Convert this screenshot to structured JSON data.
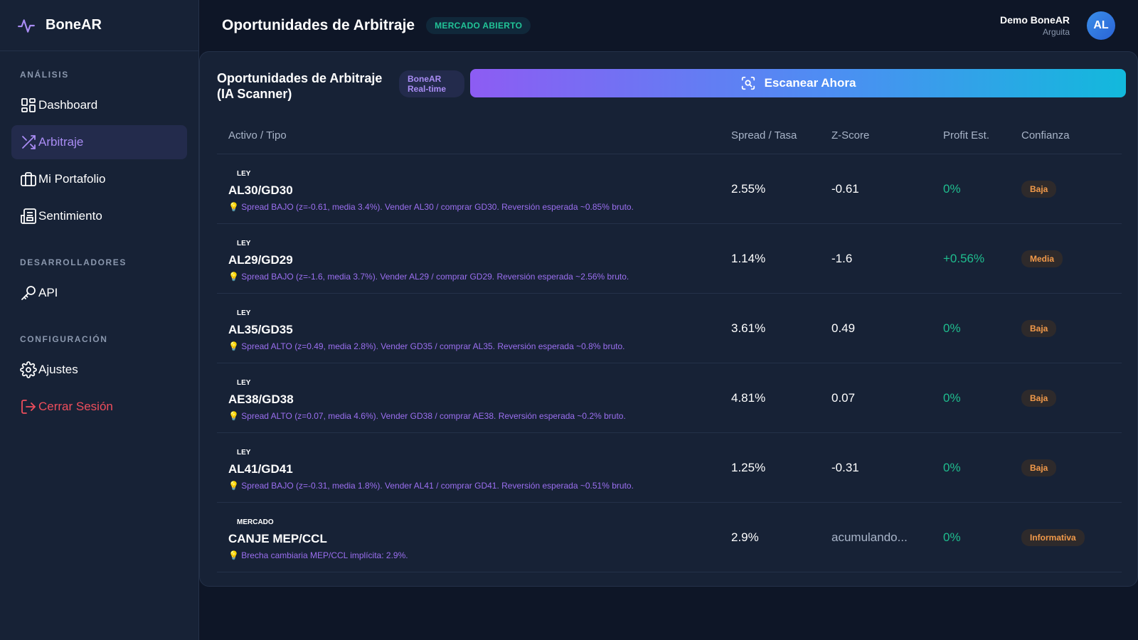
{
  "brand": {
    "name": "BoneAR"
  },
  "sidebar": {
    "sections": [
      {
        "title": "ANÁLISIS"
      },
      {
        "title": "DESARROLLADORES"
      },
      {
        "title": "CONFIGURACIÓN"
      }
    ],
    "items": [
      {
        "label": "Dashboard",
        "icon": "dashboard-icon"
      },
      {
        "label": "Arbitraje",
        "icon": "shuffle-icon",
        "active": true
      },
      {
        "label": "Mi Portafolio",
        "icon": "briefcase-icon"
      },
      {
        "label": "Sentimiento",
        "icon": "newspaper-icon"
      },
      {
        "label": "API",
        "icon": "key-icon"
      },
      {
        "label": "Ajustes",
        "icon": "gear-icon"
      },
      {
        "label": "Cerrar Sesión",
        "icon": "logout-icon"
      }
    ]
  },
  "header": {
    "title": "Oportunidades de Arbitraje",
    "market_status": "MERCADO ABIERTO",
    "user_name": "Demo BoneAR",
    "user_sub": "Arguita",
    "avatar_initials": "AL"
  },
  "card": {
    "title_line1": "Oportunidades de Arbitraje",
    "title_line2": "(IA Scanner)",
    "badge_line1": "BoneAR",
    "badge_line2": "Real-time",
    "scan_label": "Escanear Ahora"
  },
  "table": {
    "headers": {
      "asset": "Activo / Tipo",
      "spread": "Spread / Tasa",
      "z": "Z-Score",
      "profit": "Profit Est.",
      "confidence": "Confianza"
    },
    "rows": [
      {
        "tag": "LEY",
        "pair": "AL30/GD30",
        "hint": "💡 Spread BAJO (z=-0.61, media 3.4%). Vender AL30 / comprar GD30. Reversión esperada ~0.85% bruto.",
        "spread": "2.55%",
        "z": "-0.61",
        "profit": "0%",
        "confidence": "Baja"
      },
      {
        "tag": "LEY",
        "pair": "AL29/GD29",
        "hint": "💡 Spread BAJO (z=-1.6, media 3.7%). Vender AL29 / comprar GD29. Reversión esperada ~2.56% bruto.",
        "spread": "1.14%",
        "z": "-1.6",
        "profit": "+0.56%",
        "confidence": "Media"
      },
      {
        "tag": "LEY",
        "pair": "AL35/GD35",
        "hint": "💡 Spread ALTO (z=0.49, media 2.8%). Vender GD35 / comprar AL35. Reversión esperada ~0.8% bruto.",
        "spread": "3.61%",
        "z": "0.49",
        "profit": "0%",
        "confidence": "Baja"
      },
      {
        "tag": "LEY",
        "pair": "AE38/GD38",
        "hint": "💡 Spread ALTO (z=0.07, media 4.6%). Vender GD38 / comprar AE38. Reversión esperada ~0.2% bruto.",
        "spread": "4.81%",
        "z": "0.07",
        "profit": "0%",
        "confidence": "Baja"
      },
      {
        "tag": "LEY",
        "pair": "AL41/GD41",
        "hint": "💡 Spread BAJO (z=-0.31, media 1.8%). Vender AL41 / comprar GD41. Reversión esperada ~0.51% bruto.",
        "spread": "1.25%",
        "z": "-0.31",
        "profit": "0%",
        "confidence": "Baja"
      },
      {
        "tag": "MERCADO",
        "pair": "CANJE MEP/CCL",
        "hint": "💡 Brecha cambiaria MEP/CCL implícita: 2.9%.",
        "spread": "2.9%",
        "z": "acumulando...",
        "profit": "0%",
        "confidence": "Informativa"
      }
    ]
  },
  "colors": {
    "accent_purple": "#a98cf4",
    "positive_green": "#1fbe8f",
    "warning_orange": "#f29a4a",
    "danger_red": "#ef4e5c"
  }
}
